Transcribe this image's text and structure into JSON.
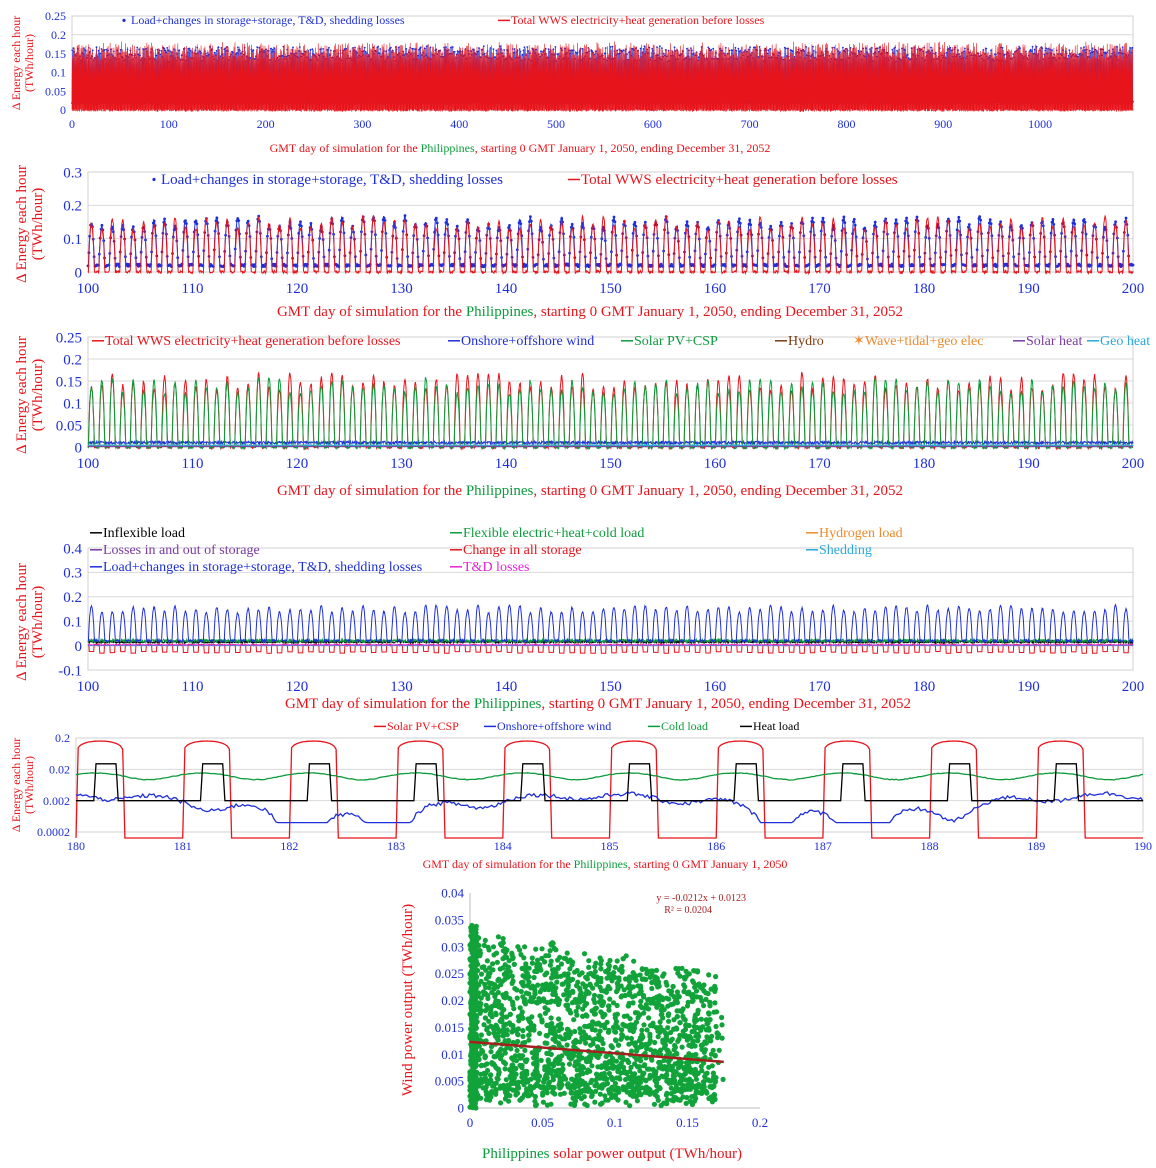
{
  "colors": {
    "red": "#e8141b",
    "blue": "#1f2fd8",
    "green": "#0c9c3c",
    "brown": "#7a3d12",
    "orange": "#ee8a2b",
    "purple": "#7a3aa0",
    "cyan": "#29a7de",
    "black": "#000000",
    "magenta": "#e522d6",
    "darkred": "#a51f1f",
    "scatter_green": "#11a33a"
  },
  "chart_data": [
    {
      "id": "p1",
      "type": "line",
      "ylabel": "Δ Energy each hour (TWh/hour)",
      "xlabel_parts": [
        "GMT day of simulation for the ",
        "Philippines",
        ", starting 0 GMT January 1, 2050, ending December 31, 2052"
      ],
      "xlim": [
        0,
        1096
      ],
      "ylim": [
        0,
        0.25
      ],
      "xticks": [
        0,
        100,
        200,
        300,
        400,
        500,
        600,
        700,
        800,
        900,
        1000
      ],
      "yticks": [
        0,
        0.05,
        0.1,
        0.15,
        0.2,
        0.25
      ],
      "ytick_labels": [
        "0",
        "0.05",
        "0.1",
        "0.15",
        "0.2",
        "0.25"
      ],
      "series": [
        {
          "name": "Load+changes in storage+storage, T&D, shedding losses",
          "color": "blue",
          "marker": "dot",
          "profile": {
            "kind": "diurnal",
            "min": 0.02,
            "max": 0.16
          }
        },
        {
          "name": "Total WWS electricity+heat generation before losses",
          "color": "red",
          "marker": "line",
          "profile": {
            "kind": "diurnal",
            "min": 0.0,
            "max": 0.17
          }
        }
      ]
    },
    {
      "id": "p2",
      "type": "line",
      "ylabel": "Δ Energy each hour (TWh/hour)",
      "xlabel_parts": [
        "GMT day of simulation for the ",
        "Philippines",
        ", starting 0 GMT January 1, 2050, ending December 31, 2052"
      ],
      "xlim": [
        100,
        200
      ],
      "ylim": [
        0,
        0.3
      ],
      "xticks": [
        100,
        110,
        120,
        130,
        140,
        150,
        160,
        170,
        180,
        190,
        200
      ],
      "yticks": [
        0,
        0.1,
        0.2,
        0.3
      ],
      "ytick_labels": [
        "0",
        "0.1",
        "0.2",
        "0.3"
      ],
      "series": [
        {
          "name": "Load+changes in storage+storage, T&D, shedding losses",
          "color": "blue",
          "marker": "dot",
          "profile": {
            "kind": "diurnal",
            "min": 0.02,
            "max": 0.16
          }
        },
        {
          "name": "Total WWS electricity+heat generation before losses",
          "color": "red",
          "marker": "line",
          "profile": {
            "kind": "diurnal",
            "min": 0.0,
            "max": 0.16
          }
        }
      ]
    },
    {
      "id": "p3",
      "type": "line",
      "ylabel": "Δ Energy each hour (TWh/hour)",
      "xlabel_parts": [
        "GMT day of simulation for the ",
        "Philippines",
        ", starting 0 GMT January 1, 2050, ending December 31, 2052"
      ],
      "xlim": [
        100,
        200
      ],
      "ylim": [
        0,
        0.25
      ],
      "xticks": [
        100,
        110,
        120,
        130,
        140,
        150,
        160,
        170,
        180,
        190,
        200
      ],
      "yticks": [
        0,
        0.05,
        0.1,
        0.15,
        0.2,
        0.25
      ],
      "ytick_labels": [
        "0",
        "0.05",
        "0.1",
        "0.15",
        "0.2",
        "0.25"
      ],
      "series": [
        {
          "name": "Total WWS electricity+heat generation before losses",
          "color": "red",
          "profile": {
            "kind": "diurnal",
            "min": 0.0,
            "max": 0.16
          }
        },
        {
          "name": "Onshore+offshore wind",
          "color": "blue",
          "profile": {
            "kind": "flat",
            "value": 0.01
          }
        },
        {
          "name": "Solar PV+CSP",
          "color": "green",
          "profile": {
            "kind": "diurnal",
            "min": 0.0,
            "max": 0.15
          }
        },
        {
          "name": "Hydro",
          "color": "brown",
          "profile": {
            "kind": "flat",
            "value": 0.003
          }
        },
        {
          "name": "Wave+tidal+geo elec",
          "color": "orange",
          "profile": {
            "kind": "flat",
            "value": 0.002
          }
        },
        {
          "name": "Solar heat",
          "color": "purple",
          "profile": {
            "kind": "flat",
            "value": 0.001
          }
        },
        {
          "name": "Geo heat",
          "color": "cyan",
          "profile": {
            "kind": "flat",
            "value": 0.004
          }
        }
      ]
    },
    {
      "id": "p4",
      "type": "line",
      "ylabel": "Δ Energy each hour (TWh/hour)",
      "xlabel_parts": [
        "GMT day of simulation for the ",
        "Philippines",
        ", starting 0 GMT January 1, 2050, ending December 31, 2052"
      ],
      "xlim": [
        100,
        200
      ],
      "ylim": [
        -0.1,
        0.4
      ],
      "xticks": [
        100,
        110,
        120,
        130,
        140,
        150,
        160,
        170,
        180,
        190,
        200
      ],
      "yticks": [
        -0.1,
        0,
        0.1,
        0.2,
        0.3,
        0.4
      ],
      "ytick_labels": [
        "-0.1",
        "0",
        "0.1",
        "0.2",
        "0.3",
        "0.4"
      ],
      "series": [
        {
          "name": "Inflexible load",
          "color": "black",
          "profile": {
            "kind": "flat",
            "value": 0.015
          }
        },
        {
          "name": "Flexible electric+heat+cold load",
          "color": "green",
          "profile": {
            "kind": "flat",
            "value": 0.02
          }
        },
        {
          "name": "Hydrogen load",
          "color": "orange",
          "profile": {
            "kind": "flat",
            "value": 0.002
          }
        },
        {
          "name": "Losses in and out of storage",
          "color": "purple",
          "profile": {
            "kind": "flat",
            "value": 0.001
          }
        },
        {
          "name": "Change in all storage",
          "color": "red",
          "profile": {
            "kind": "diurnal_neg",
            "min": -0.03,
            "max": 0.02
          }
        },
        {
          "name": "Shedding",
          "color": "cyan",
          "profile": {
            "kind": "flat",
            "value": 0.0
          }
        },
        {
          "name": "Load+changes in storage+storage, T&D, shedding losses",
          "color": "blue",
          "profile": {
            "kind": "diurnal",
            "min": 0.02,
            "max": 0.16
          }
        },
        {
          "name": "T&D losses",
          "color": "magenta",
          "profile": {
            "kind": "flat",
            "value": 0.003
          }
        }
      ]
    },
    {
      "id": "p5",
      "type": "line",
      "log_y": true,
      "ylabel": "Δ Energy each hour (TWh/hour)",
      "xlabel_parts": [
        "GMT day of simulation for the ",
        "Philippines",
        ", starting 0 GMT January 1, 2050"
      ],
      "xlim": [
        180,
        190
      ],
      "ylim": [
        0.0002,
        0.2
      ],
      "xticks": [
        180,
        181,
        182,
        183,
        184,
        185,
        186,
        187,
        188,
        189,
        190
      ],
      "yticks": [
        0.0002,
        0.002,
        0.02,
        0.2
      ],
      "ytick_labels": [
        "0.0002",
        "0.002",
        "0.02",
        "0.2"
      ],
      "series": [
        {
          "name": "Solar PV+CSP",
          "color": "red",
          "profile": {
            "kind": "solar_log",
            "max": 0.16
          }
        },
        {
          "name": "Onshore+offshore wind",
          "color": "blue",
          "profile": {
            "kind": "wind_log",
            "mid": 0.0015
          }
        },
        {
          "name": "Cold load",
          "color": "green",
          "profile": {
            "kind": "flat_log",
            "value": 0.012
          }
        },
        {
          "name": "Heat load",
          "color": "black",
          "profile": {
            "kind": "heat_log",
            "low": 0.002,
            "high": 0.03
          }
        }
      ]
    },
    {
      "id": "p6",
      "type": "scatter",
      "xlabel_parts": [
        "Philippines",
        " solar power output (TWh/hour)"
      ],
      "ylabel": "Wind power output (TWh/hour)",
      "xlim": [
        0,
        0.2
      ],
      "ylim": [
        0,
        0.04
      ],
      "xticks": [
        0,
        0.05,
        0.1,
        0.15,
        0.2
      ],
      "xtick_labels": [
        "0",
        "0.05",
        "0.1",
        "0.15",
        "0.2"
      ],
      "yticks": [
        0,
        0.005,
        0.01,
        0.015,
        0.02,
        0.025,
        0.03,
        0.035,
        0.04
      ],
      "ytick_labels": [
        "0",
        "0.005",
        "0.01",
        "0.015",
        "0.02",
        "0.025",
        "0.03",
        "0.035",
        "0.04"
      ],
      "trendline": {
        "slope": -0.0212,
        "intercept": 0.0123,
        "x_range": [
          0,
          0.175
        ]
      },
      "equation": "y = -0.0212x + 0.0123",
      "r2": "R² = 0.0204",
      "point_count": 2600
    }
  ]
}
